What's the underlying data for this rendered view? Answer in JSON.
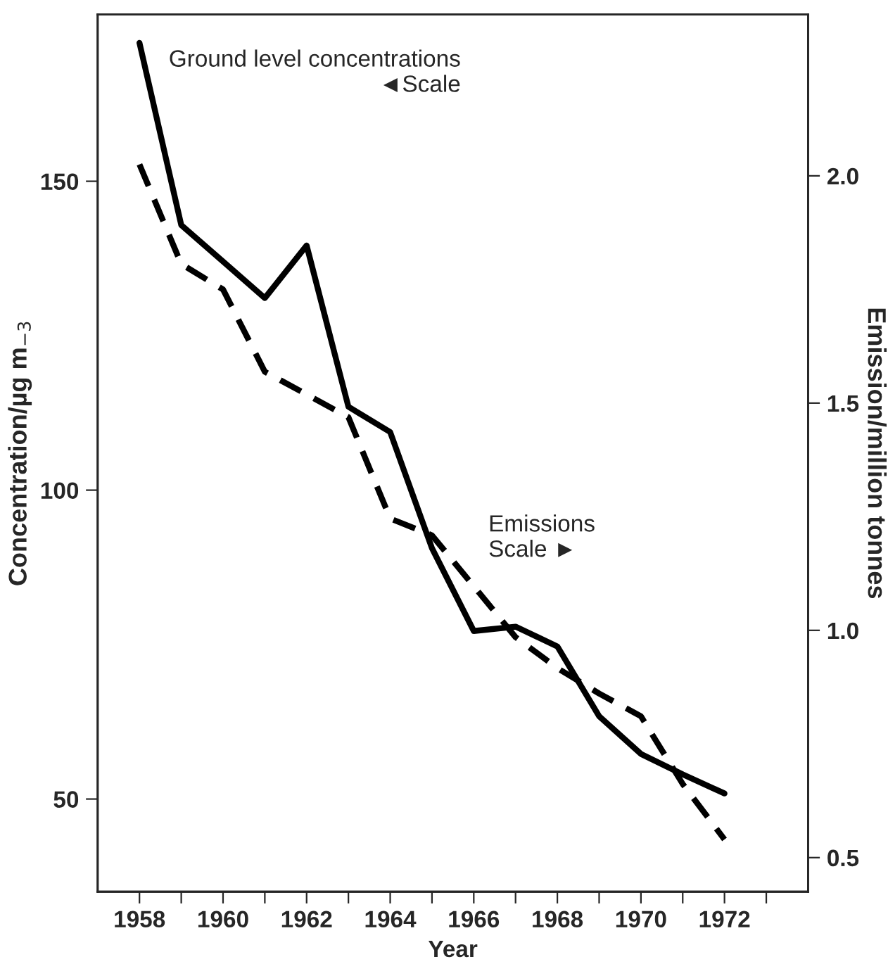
{
  "chart_data": {
    "type": "line",
    "xlabel": "Year",
    "ylabel": "Concentration/µg m$_{−3}$",
    "y2label": "Emission/million tonnes",
    "x": [
      1958,
      1959,
      1960,
      1961,
      1962,
      1963,
      1964,
      1965,
      1966,
      1967,
      1968,
      1969,
      1970,
      1971,
      1972
    ],
    "series": [
      {
        "color": "#000000",
        "line_style": "solid",
        "values": [
          172.4,
          142.9,
          137,
          131.1,
          139.6,
          113.5,
          109.4,
          90.6,
          77.2,
          77.9,
          74.7,
          63.4,
          57.3,
          54.0,
          50.9
        ]
      },
      {
        "color": "#000000",
        "line_style": "dashed",
        "axis": "y2",
        "values": [
          2.025,
          1.806,
          1.75,
          1.569,
          1.519,
          1.469,
          1.246,
          1.209,
          1.097,
          0.985,
          0.917,
          0.861,
          0.811,
          0.662,
          0.54
        ]
      }
    ],
    "xlim": [
      1957,
      1974
    ],
    "xticks": [
      1958,
      {
        "value": 1959,
        "label": null
      },
      1960,
      {
        "value": 1961,
        "label": null
      },
      1962,
      {
        "value": 1963,
        "label": null
      },
      1964,
      {
        "value": 1965,
        "label": null
      },
      1966,
      {
        "value": 1967,
        "label": null
      },
      1968,
      {
        "value": 1969,
        "label": null
      },
      1970,
      {
        "value": 1971,
        "label": null
      },
      1972,
      {
        "value": 1973,
        "label": null
      }
    ],
    "ylim": [
      35,
      177
    ],
    "yticks": [
      50,
      100,
      150
    ],
    "y2lim": [
      0.425,
      2.355
    ],
    "y2ticks": [
      {
        "value": 0.5,
        "label": "0.5"
      },
      {
        "value": 1.0,
        "label": "1.0"
      },
      {
        "value": 1.5,
        "label": "1.5"
      },
      {
        "value": 2.0,
        "label": "2.0"
      }
    ],
    "annotations": [
      "Ground level concentrations\n◄Scale",
      "Emissions\nScale ►"
    ],
    "grid": false,
    "legend": false,
    "marker": "none"
  }
}
